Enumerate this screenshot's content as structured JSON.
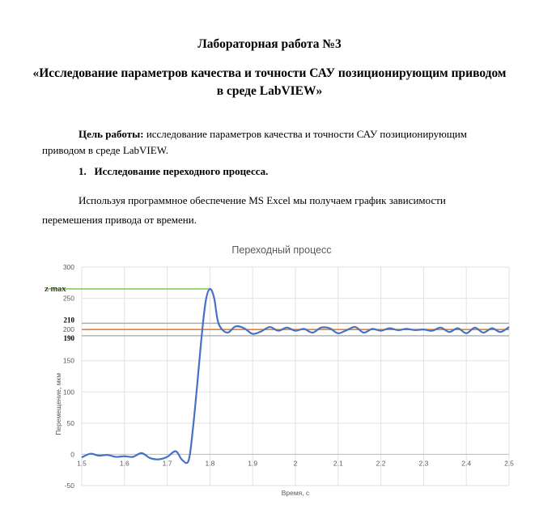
{
  "document": {
    "title_line1": "Лабораторная работа №3",
    "title_line2": "«Исследование параметров качества и точности САУ позиционирующим приводом в среде LabVIEW»",
    "goal_label": "Цель работы:",
    "goal_text_line1": " исследование параметров качества и точности САУ позиционирующим",
    "goal_text_line2": "приводом в среде LabVIEW.",
    "section_number": "1.",
    "section_title": "Исследование переходного процесса.",
    "para_line1": "Используя программное обеспечение MS Excel мы получаем график зависимости",
    "para_line2": "перемешения привода от времени."
  },
  "chart_data": {
    "type": "line",
    "title": "Переходный процесс",
    "xlabel": "Время, с",
    "ylabel": "Перемещение, мкм",
    "xlim": [
      1.5,
      2.5
    ],
    "ylim": [
      -50,
      300
    ],
    "x_ticks": [
      "1.5",
      "1.6",
      "1.7",
      "1.8",
      "1.9",
      "2",
      "2.1",
      "2.2",
      "2.3",
      "2.4",
      "2.5"
    ],
    "y_ticks": [
      "300",
      "250",
      "200",
      "150",
      "100",
      "50",
      "0",
      "-50"
    ],
    "grid": true,
    "annotations": {
      "zmax_label": "z max",
      "band_upper_label": "210",
      "band_center_label": "200",
      "band_lower_label": "190"
    },
    "reference_lines": [
      {
        "name": "zmax",
        "y": 265,
        "x": [
          1.5,
          1.8
        ],
        "color": "#7ec84a"
      },
      {
        "name": "upper",
        "y": 210,
        "x": [
          1.5,
          2.5
        ],
        "color": "#a6a6a6"
      },
      {
        "name": "setpoint",
        "y": 200,
        "x": [
          1.5,
          2.5
        ],
        "color": "#ed7d31"
      },
      {
        "name": "lower",
        "y": 190,
        "x": [
          1.5,
          2.5
        ],
        "color": "#a6a6a6"
      }
    ],
    "series": [
      {
        "color": "#4472c4",
        "x": [
          1.5,
          1.52,
          1.54,
          1.56,
          1.58,
          1.6,
          1.62,
          1.64,
          1.66,
          1.68,
          1.7,
          1.72,
          1.735,
          1.75,
          1.76,
          1.77,
          1.78,
          1.79,
          1.8,
          1.81,
          1.82,
          1.84,
          1.86,
          1.88,
          1.9,
          1.92,
          1.94,
          1.96,
          1.98,
          2.0,
          2.02,
          2.04,
          2.06,
          2.08,
          2.1,
          2.12,
          2.14,
          2.16,
          2.18,
          2.2,
          2.22,
          2.24,
          2.26,
          2.28,
          2.3,
          2.32,
          2.34,
          2.36,
          2.38,
          2.4,
          2.42,
          2.44,
          2.46,
          2.48,
          2.5
        ],
        "y": [
          -5,
          1,
          -2,
          -1,
          -4,
          -3,
          -4,
          2,
          -6,
          -8,
          -4,
          5,
          -9,
          -10,
          40,
          110,
          185,
          245,
          265,
          250,
          210,
          195,
          205,
          202,
          193,
          197,
          204,
          198,
          203,
          198,
          201,
          195,
          203,
          202,
          194,
          199,
          204,
          195,
          201,
          198,
          202,
          199,
          201,
          199,
          200,
          198,
          203,
          196,
          202,
          194,
          203,
          195,
          202,
          196,
          204
        ]
      }
    ]
  }
}
